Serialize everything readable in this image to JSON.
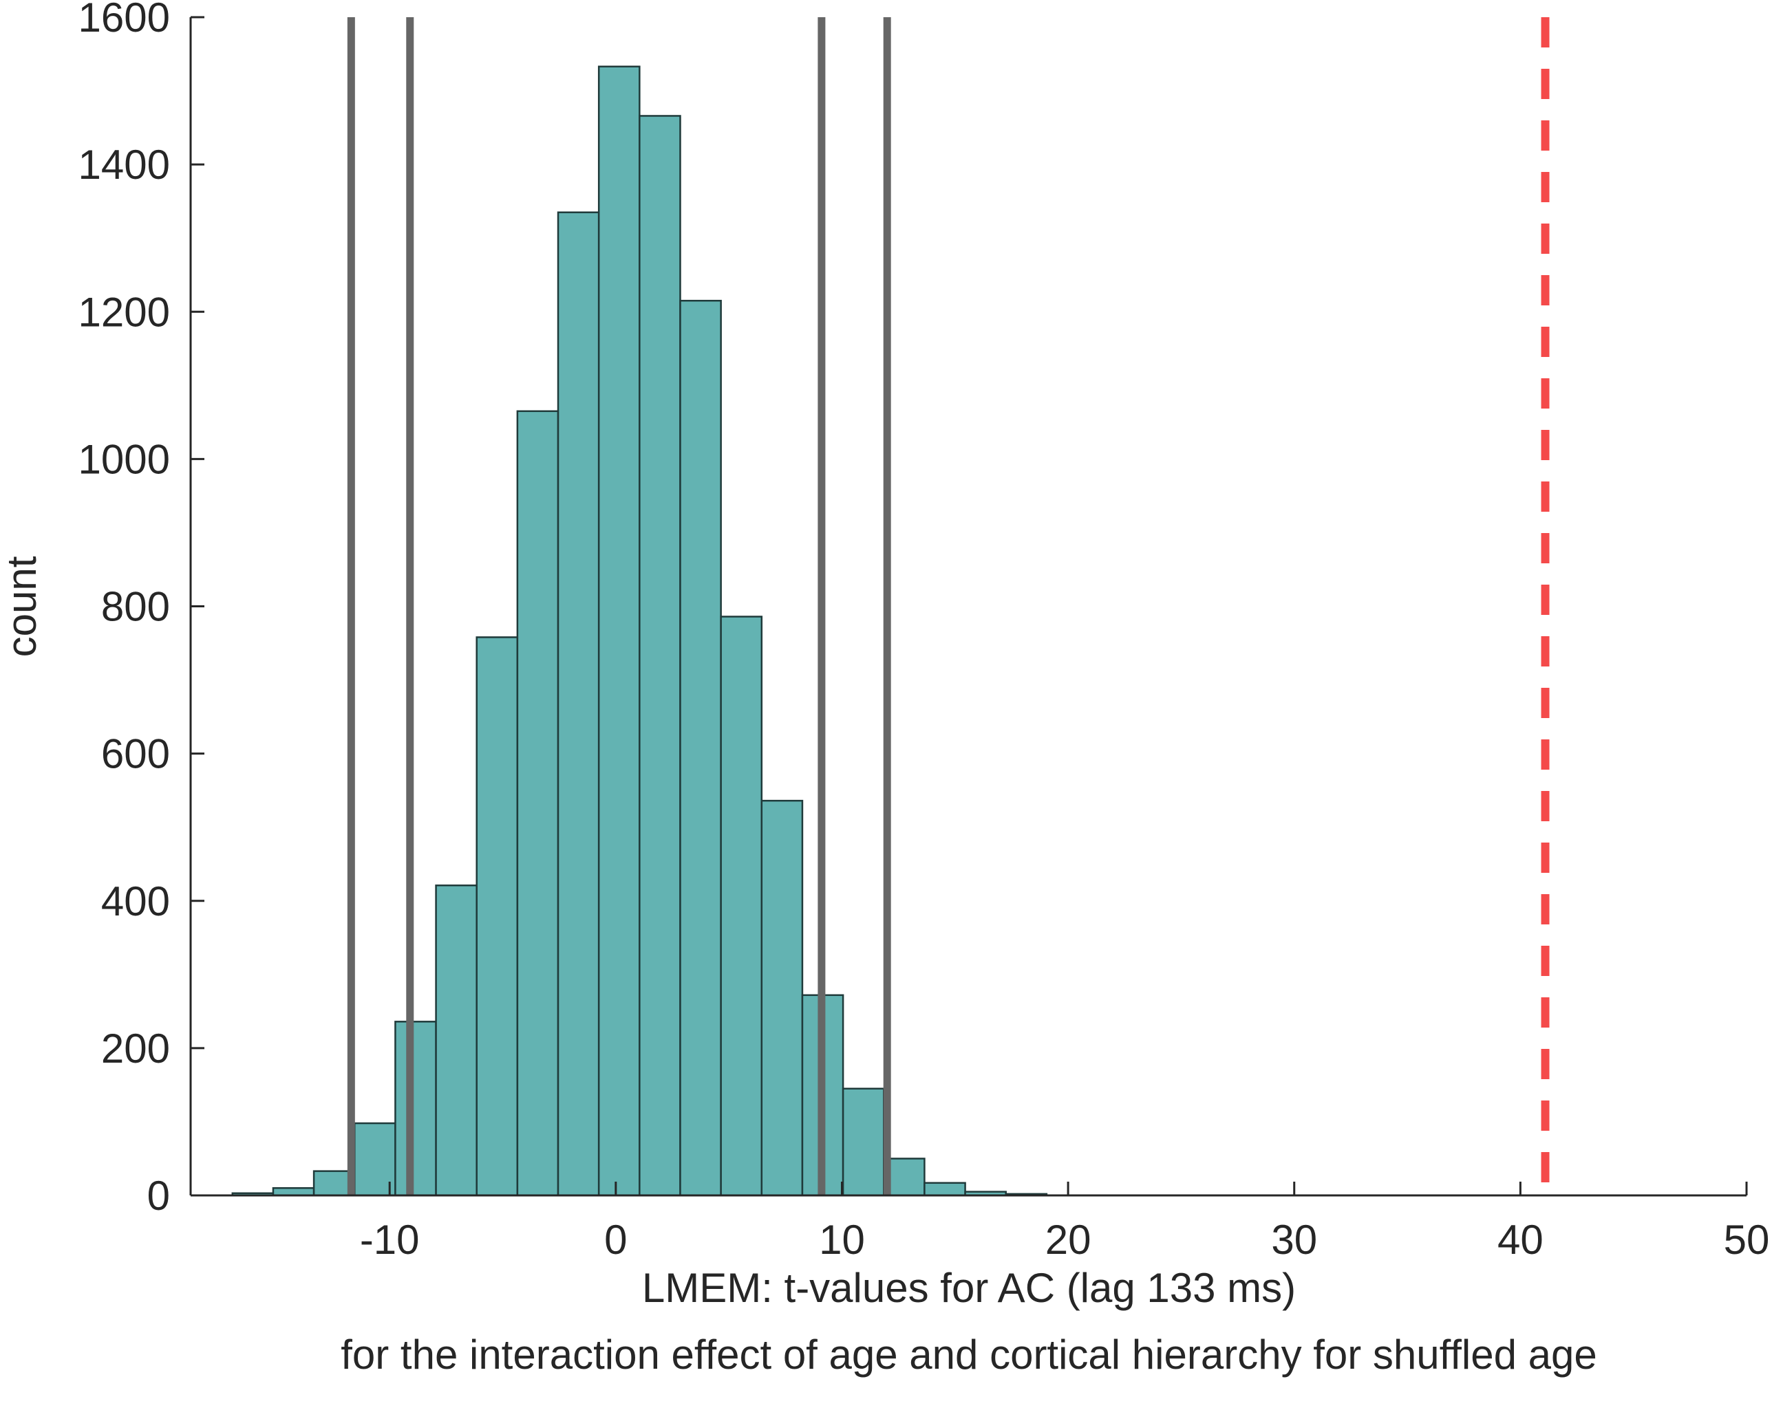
{
  "chart_data": {
    "type": "bar",
    "subtype": "histogram",
    "xlabel": "LMEM: t-values for AC (lag 133 ms)",
    "xlabel_line2": "for the interaction effect of age and cortical hierarchy for shuffled age",
    "ylabel": "count",
    "xlim": [
      -18.8,
      50
    ],
    "ylim": [
      0,
      1600
    ],
    "x_ticks": [
      -10,
      0,
      10,
      20,
      30,
      40,
      50
    ],
    "y_ticks": [
      0,
      200,
      400,
      600,
      800,
      1000,
      1200,
      1400,
      1600
    ],
    "grid": false,
    "bin_width": 1.8,
    "bins": [
      {
        "x0": -16.95,
        "x1": -15.15,
        "count": 3
      },
      {
        "x0": -15.15,
        "x1": -13.35,
        "count": 10
      },
      {
        "x0": -13.35,
        "x1": -11.55,
        "count": 33
      },
      {
        "x0": -11.55,
        "x1": -9.75,
        "count": 98
      },
      {
        "x0": -9.75,
        "x1": -7.95,
        "count": 236
      },
      {
        "x0": -7.95,
        "x1": -6.15,
        "count": 421
      },
      {
        "x0": -6.15,
        "x1": -4.35,
        "count": 758
      },
      {
        "x0": -4.35,
        "x1": -2.55,
        "count": 1065
      },
      {
        "x0": -2.55,
        "x1": -0.75,
        "count": 1335
      },
      {
        "x0": -0.75,
        "x1": 1.05,
        "count": 1533
      },
      {
        "x0": 1.05,
        "x1": 2.85,
        "count": 1466
      },
      {
        "x0": 2.85,
        "x1": 4.65,
        "count": 1215
      },
      {
        "x0": 4.65,
        "x1": 6.45,
        "count": 786
      },
      {
        "x0": 6.45,
        "x1": 8.25,
        "count": 536
      },
      {
        "x0": 8.25,
        "x1": 10.05,
        "count": 272
      },
      {
        "x0": 10.05,
        "x1": 11.85,
        "count": 145
      },
      {
        "x0": 11.85,
        "x1": 13.65,
        "count": 50
      },
      {
        "x0": 13.65,
        "x1": 15.45,
        "count": 17
      },
      {
        "x0": 15.45,
        "x1": 17.25,
        "count": 5
      },
      {
        "x0": 17.25,
        "x1": 19.05,
        "count": 2
      }
    ],
    "reference_lines": [
      {
        "x": -11.7,
        "style": "solid"
      },
      {
        "x": -9.1,
        "style": "solid"
      },
      {
        "x": 9.1,
        "style": "solid"
      },
      {
        "x": 12.0,
        "style": "solid"
      },
      {
        "x": 41.1,
        "style": "dashed"
      }
    ],
    "colors": {
      "bar_fill": "#63b3b2",
      "bar_edge": "#1f3a3a",
      "reference_solid": "#666666",
      "reference_dashed": "#f44a4a",
      "axis": "#262626"
    }
  }
}
